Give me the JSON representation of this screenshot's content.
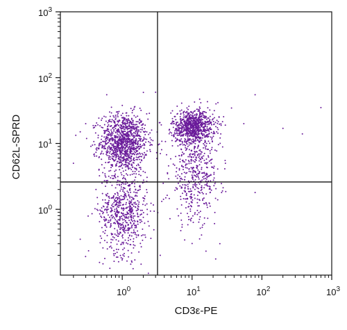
{
  "chart_data": {
    "type": "scatter",
    "title": "",
    "xlabel": "CD3ε-PE",
    "ylabel": "CD62L-SPRD",
    "x_scale": "log",
    "y_scale": "log",
    "xlim": [
      0.13,
      1000
    ],
    "ylim": [
      0.1,
      1000
    ],
    "x_tick_values": [
      1,
      10,
      100,
      1000
    ],
    "x_tick_labels": [
      {
        "base": "10",
        "exp": "0"
      },
      {
        "base": "10",
        "exp": "1"
      },
      {
        "base": "10",
        "exp": "2"
      },
      {
        "base": "10",
        "exp": "3"
      }
    ],
    "y_tick_values": [
      1,
      10,
      100,
      1000
    ],
    "y_tick_labels": [
      {
        "base": "10",
        "exp": "0"
      },
      {
        "base": "10",
        "exp": "1"
      },
      {
        "base": "10",
        "exp": "2"
      },
      {
        "base": "10",
        "exp": "3"
      }
    ],
    "quadrant_gates": {
      "x": 3.2,
      "y": 2.6
    },
    "grid": false,
    "legend": "none",
    "dot_color": "#6a1b9a",
    "populations": [
      {
        "description_id": "CD3-negative CD62L-high",
        "center": [
          1.05,
          10.5
        ],
        "spread_log10": [
          0.17,
          0.22
        ],
        "count": 1100
      },
      {
        "description_id": "CD3-negative CD62L-low",
        "center": [
          1.05,
          0.95
        ],
        "spread_log10": [
          0.17,
          0.33
        ],
        "count": 650
      },
      {
        "description_id": "CD3-positive CD62L-high",
        "center": [
          10.5,
          18.0
        ],
        "spread_log10": [
          0.15,
          0.13
        ],
        "count": 800
      },
      {
        "description_id": "CD3-positive CD62L-spread",
        "center": [
          11.0,
          3.5
        ],
        "spread_log10": [
          0.18,
          0.38
        ],
        "count": 500
      }
    ],
    "outlier_points": [
      [
        0.25,
        15.0
      ],
      [
        0.3,
        20.0
      ],
      [
        0.2,
        5.0
      ],
      [
        0.6,
        55.0
      ],
      [
        3.0,
        60.0
      ],
      [
        80,
        55
      ],
      [
        700,
        35
      ],
      [
        200,
        17
      ],
      [
        380,
        14
      ],
      [
        22,
        40
      ],
      [
        55,
        20
      ],
      [
        30,
        5.0
      ],
      [
        80,
        1.8
      ],
      [
        0.25,
        0.35
      ],
      [
        3.5,
        0.2
      ],
      [
        25,
        0.3
      ]
    ]
  }
}
